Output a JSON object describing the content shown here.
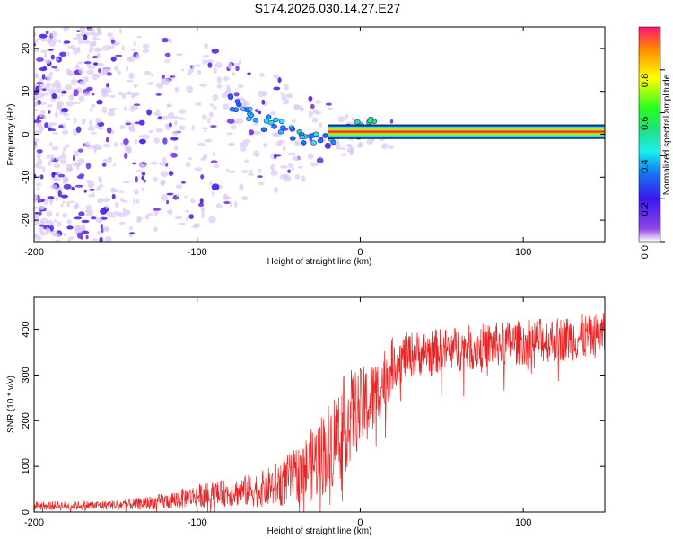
{
  "title": "S174.2026.030.14.27.E27",
  "colors": {
    "snr_line": "#ee2222",
    "frame": "#000000",
    "background": "#ffffff",
    "spectrogram_low": "#dcc8f4",
    "spectrogram_mid": "#7a1ae8"
  },
  "chart_data": [
    {
      "type": "heatmap",
      "name": "spectrogram",
      "xlabel": "Height of straight line (km)",
      "ylabel": "Frequency (Hz)",
      "xlim": [
        -200,
        150
      ],
      "ylim": [
        -25,
        25
      ],
      "xticks": [
        -200,
        -100,
        0,
        100
      ],
      "yticks": [
        -20,
        -10,
        0,
        10,
        20
      ],
      "colorbar": {
        "label": "Normalized spectral amplitude",
        "range": [
          0,
          1
        ],
        "ticks": [
          "0.0",
          "0.2",
          "0.4",
          "0.6",
          "0.8"
        ]
      },
      "features": {
        "carrier_band": {
          "x_from": -20,
          "x_to": 150,
          "freq_center": 0.6,
          "freq_halfwidth": 1.6,
          "amplitude": 1.0
        },
        "emission_ridge": [
          {
            "x": -75,
            "f": 7,
            "a": 0.45
          },
          {
            "x": -65,
            "f": 5,
            "a": 0.5
          },
          {
            "x": -55,
            "f": 3,
            "a": 0.45
          },
          {
            "x": -45,
            "f": 1,
            "a": 0.5
          },
          {
            "x": -35,
            "f": 0,
            "a": 0.5
          },
          {
            "x": -25,
            "f": -1,
            "a": 0.45
          },
          {
            "x": -15,
            "f": 0,
            "a": 0.55
          },
          {
            "x": -5,
            "f": 1,
            "a": 0.6
          },
          {
            "x": 5,
            "f": 2,
            "a": 0.6
          },
          {
            "x": 10,
            "f": 1.5,
            "a": 0.55
          }
        ],
        "scatter_envelope": [
          {
            "x": -200,
            "half_width": 25,
            "density": 0.9
          },
          {
            "x": -150,
            "half_width": 25,
            "density": 0.75
          },
          {
            "x": -100,
            "half_width": 22,
            "density": 0.6
          },
          {
            "x": -60,
            "half_width": 15,
            "density": 0.45
          },
          {
            "x": -30,
            "half_width": 10,
            "density": 0.3
          },
          {
            "x": 0,
            "half_width": 3,
            "density": 0.1
          }
        ]
      }
    },
    {
      "type": "line",
      "name": "snr",
      "xlabel": "Height of straight line (km)",
      "ylabel": "SNR (10 * v/v)",
      "xlim": [
        -200,
        150
      ],
      "ylim": [
        0,
        470
      ],
      "xticks": [
        -200,
        -100,
        0,
        100
      ],
      "yticks": [
        0,
        100,
        200,
        300,
        400
      ],
      "series": [
        {
          "name": "SNR",
          "color": "#ee2222",
          "x": [
            -200,
            -180,
            -160,
            -140,
            -120,
            -100,
            -80,
            -60,
            -50,
            -40,
            -30,
            -20,
            -15,
            -10,
            -5,
            0,
            5,
            10,
            15,
            20,
            30,
            40,
            50,
            60,
            70,
            80,
            90,
            100,
            110,
            120,
            130,
            140,
            150
          ],
          "mean": [
            15,
            15,
            16,
            18,
            25,
            38,
            45,
            55,
            65,
            85,
            110,
            150,
            175,
            200,
            225,
            235,
            245,
            265,
            300,
            330,
            350,
            355,
            358,
            362,
            366,
            370,
            374,
            377,
            380,
            383,
            386,
            389,
            392
          ],
          "spread": [
            10,
            10,
            10,
            12,
            18,
            25,
            30,
            40,
            50,
            60,
            80,
            100,
            110,
            110,
            100,
            90,
            90,
            80,
            70,
            60,
            50,
            50,
            50,
            50,
            50,
            50,
            50,
            50,
            50,
            50,
            50,
            50,
            50
          ]
        }
      ]
    }
  ]
}
